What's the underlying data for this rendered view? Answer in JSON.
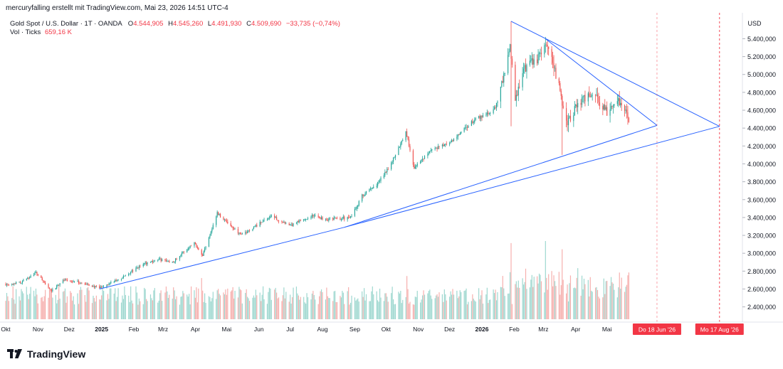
{
  "header": {
    "caption": "mercuryfalling erstellt mit TradingView.com, Mai 23, 2026 14:51 UTC-4"
  },
  "legend": {
    "symbol": "Gold Spot / U.S. Dollar · 1T · OANDA",
    "open_label": "O",
    "open": "4.544,905",
    "high_label": "H",
    "high": "4.545,260",
    "low_label": "L",
    "low": "4.491,930",
    "close_label": "C",
    "close": "4.509,690",
    "change": "−33,735 (−0,74%)",
    "vol_label": "Vol · Ticks",
    "vol_value": "659,16 K"
  },
  "colors": {
    "up": "#26a69a",
    "down": "#ef5350",
    "up_vol": "#9fd8d0",
    "down_vol": "#f6b0ae",
    "trendline": "#2962ff",
    "marker": "#f23645",
    "text": "#131722",
    "axis_text": "#131722",
    "grid": "#e0e3eb"
  },
  "chart_data": {
    "type": "candlestick",
    "y_axis_unit": "USD",
    "yticks": [
      2400,
      2600,
      2800,
      3000,
      3200,
      3400,
      3600,
      3800,
      4000,
      4200,
      4400,
      4600,
      4800,
      5000,
      5200,
      5400
    ],
    "ytick_labels": [
      "2.400,000",
      "2.600,000",
      "2.800,000",
      "3.000,000",
      "3.200,000",
      "3.400,000",
      "3.600,000",
      "3.800,000",
      "4.000,000",
      "4.200,000",
      "4.400,000",
      "4.600,000",
      "4.800,000",
      "5.000,000",
      "5.200,000",
      "5.400,000"
    ],
    "ylim": [
      2230,
      5690
    ],
    "x_start": "2024-10-01",
    "x_end": "2026-09-08",
    "x_ticks": [
      {
        "date": "2024-10-01",
        "label": "Okt",
        "bold": false
      },
      {
        "date": "2024-11-01",
        "label": "Nov",
        "bold": false
      },
      {
        "date": "2024-12-01",
        "label": "Dez",
        "bold": false
      },
      {
        "date": "2025-01-01",
        "label": "2025",
        "bold": true
      },
      {
        "date": "2025-02-01",
        "label": "Feb",
        "bold": false
      },
      {
        "date": "2025-03-01",
        "label": "Mrz",
        "bold": false
      },
      {
        "date": "2025-04-01",
        "label": "Apr",
        "bold": false
      },
      {
        "date": "2025-05-01",
        "label": "Mai",
        "bold": false
      },
      {
        "date": "2025-06-01",
        "label": "Jun",
        "bold": false
      },
      {
        "date": "2025-07-01",
        "label": "Jul",
        "bold": false
      },
      {
        "date": "2025-08-01",
        "label": "Aug",
        "bold": false
      },
      {
        "date": "2025-09-01",
        "label": "Sep",
        "bold": false
      },
      {
        "date": "2025-10-01",
        "label": "Okt",
        "bold": false
      },
      {
        "date": "2025-11-01",
        "label": "Nov",
        "bold": false
      },
      {
        "date": "2025-12-01",
        "label": "Dez",
        "bold": false
      },
      {
        "date": "2026-01-01",
        "label": "2026",
        "bold": true
      },
      {
        "date": "2026-02-01",
        "label": "Feb",
        "bold": false
      },
      {
        "date": "2026-03-01",
        "label": "Mrz",
        "bold": false
      },
      {
        "date": "2026-04-01",
        "label": "Apr",
        "bold": false
      },
      {
        "date": "2026-05-01",
        "label": "Mai",
        "bold": false
      }
    ],
    "price_path": [
      [
        "2024-10-01",
        2655
      ],
      [
        "2024-10-15",
        2670
      ],
      [
        "2024-10-30",
        2785
      ],
      [
        "2024-11-14",
        2570
      ],
      [
        "2024-11-25",
        2700
      ],
      [
        "2024-12-10",
        2675
      ],
      [
        "2024-12-30",
        2610
      ],
      [
        "2025-01-20",
        2720
      ],
      [
        "2025-02-10",
        2880
      ],
      [
        "2025-02-25",
        2930
      ],
      [
        "2025-03-10",
        2900
      ],
      [
        "2025-03-31",
        3120
      ],
      [
        "2025-04-08",
        2980
      ],
      [
        "2025-04-22",
        3450
      ],
      [
        "2025-05-15",
        3200
      ],
      [
        "2025-06-13",
        3420
      ],
      [
        "2025-06-30",
        3300
      ],
      [
        "2025-07-22",
        3420
      ],
      [
        "2025-08-05",
        3380
      ],
      [
        "2025-08-28",
        3400
      ],
      [
        "2025-09-08",
        3640
      ],
      [
        "2025-09-23",
        3780
      ],
      [
        "2025-10-08",
        4050
      ],
      [
        "2025-10-20",
        4360
      ],
      [
        "2025-10-28",
        3950
      ],
      [
        "2025-11-12",
        4150
      ],
      [
        "2025-12-01",
        4230
      ],
      [
        "2025-12-26",
        4500
      ],
      [
        "2026-01-14",
        4620
      ],
      [
        "2026-01-28",
        5300
      ],
      [
        "2026-02-02",
        4700
      ],
      [
        "2026-02-10",
        5050
      ],
      [
        "2026-02-25",
        5200
      ],
      [
        "2026-03-03",
        5350
      ],
      [
        "2026-03-10",
        5150
      ],
      [
        "2026-03-16",
        4850
      ],
      [
        "2026-03-24",
        4450
      ],
      [
        "2026-04-01",
        4620
      ],
      [
        "2026-04-14",
        4800
      ],
      [
        "2026-04-20",
        4760
      ],
      [
        "2026-05-01",
        4580
      ],
      [
        "2026-05-11",
        4720
      ],
      [
        "2026-05-22",
        4510
      ]
    ],
    "annotations": {
      "peak": {
        "date": "2026-01-29",
        "price": 5595
      },
      "trendline_upper_inner": [
        {
          "date": "2026-03-03",
          "price": 5400
        },
        {
          "date": "2026-06-18",
          "price": 4430
        }
      ],
      "trendline_upper_outer": [
        {
          "date": "2026-01-29",
          "price": 5595
        },
        {
          "date": "2026-08-17",
          "price": 4420
        }
      ],
      "trendline_lower_inner": [
        {
          "date": "2024-12-30",
          "price": 2600
        },
        {
          "date": "2025-08-22",
          "price": 3290
        },
        {
          "date": "2026-06-18",
          "price": 4430
        }
      ],
      "trendline_lower_outer": [
        {
          "date": "2025-08-22",
          "price": 3290
        },
        {
          "date": "2026-08-17",
          "price": 4420
        }
      ],
      "vertical_markers": [
        {
          "date": "2026-06-18",
          "label": "Do 18 Jun '26"
        },
        {
          "date": "2026-08-17",
          "label": "Mo 17 Aug '26"
        }
      ]
    }
  },
  "footer": {
    "brand": "TradingView"
  }
}
